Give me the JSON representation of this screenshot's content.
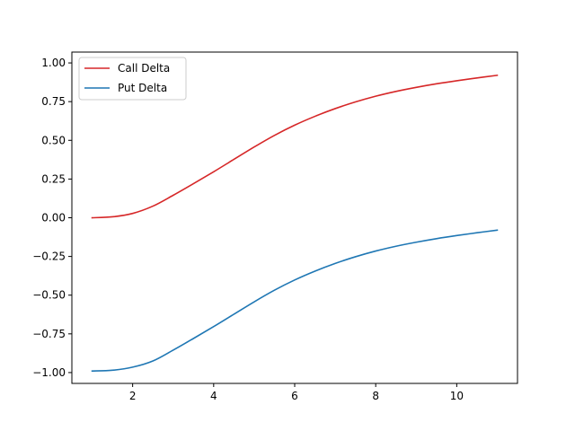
{
  "chart_data": {
    "type": "line",
    "title": "",
    "xlabel": "",
    "ylabel": "",
    "xlim": [
      0.5,
      11.5
    ],
    "ylim": [
      -1.07,
      1.07
    ],
    "x_ticks": [
      2,
      4,
      6,
      8,
      10
    ],
    "x_tick_labels": [
      "2",
      "4",
      "6",
      "8",
      "10"
    ],
    "y_ticks": [
      1.0,
      0.75,
      0.5,
      0.25,
      0.0,
      -0.25,
      -0.5,
      -0.75,
      -1.0
    ],
    "y_tick_labels": [
      "1.00",
      "0.75",
      "0.50",
      "0.25",
      "0.00",
      "−0.25",
      "−0.50",
      "−0.75",
      "−1.00"
    ],
    "grid": false,
    "legend_position": "upper-left",
    "x": [
      1.0,
      1.5,
      2.0,
      2.5,
      3.0,
      3.5,
      4.0,
      4.5,
      5.0,
      5.5,
      6.0,
      6.5,
      7.0,
      7.5,
      8.0,
      8.5,
      9.0,
      9.5,
      10.0,
      10.5,
      11.0
    ],
    "series": [
      {
        "name": "Call Delta",
        "color": "#d62728",
        "values": [
          0.0,
          0.006,
          0.028,
          0.075,
          0.145,
          0.22,
          0.297,
          0.377,
          0.457,
          0.532,
          0.598,
          0.655,
          0.705,
          0.748,
          0.785,
          0.816,
          0.842,
          0.865,
          0.885,
          0.903,
          0.92
        ]
      },
      {
        "name": "Put Delta",
        "color": "#1f77b4",
        "values": [
          -0.99,
          -0.985,
          -0.965,
          -0.925,
          -0.855,
          -0.78,
          -0.703,
          -0.623,
          -0.543,
          -0.468,
          -0.402,
          -0.345,
          -0.295,
          -0.252,
          -0.215,
          -0.184,
          -0.158,
          -0.135,
          -0.115,
          -0.097,
          -0.08
        ]
      }
    ]
  }
}
